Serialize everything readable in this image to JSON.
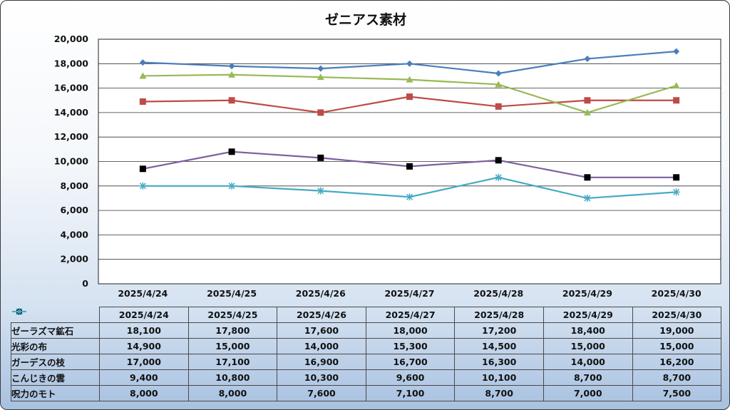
{
  "chart_data": {
    "type": "line",
    "title": "ゼニアス素材",
    "categories": [
      "2025/4/24",
      "2025/4/25",
      "2025/4/26",
      "2025/4/27",
      "2025/4/28",
      "2025/4/29",
      "2025/4/30"
    ],
    "ylim": [
      0,
      20000
    ],
    "yticks": [
      "0",
      "2,000",
      "4,000",
      "6,000",
      "8,000",
      "10,000",
      "12,000",
      "14,000",
      "16,000",
      "18,000",
      "20,000"
    ],
    "grid": true,
    "legend": "data-table",
    "series": [
      {
        "name": "ゼーラズマ鉱石",
        "color": "#4a7ebb",
        "marker": "diamond",
        "values": [
          18100,
          17800,
          17600,
          18000,
          17200,
          18400,
          19000
        ],
        "labels": [
          "18,100",
          "17,800",
          "17,600",
          "18,000",
          "17,200",
          "18,400",
          "19,000"
        ]
      },
      {
        "name": "光彩の布",
        "color": "#be4b48",
        "marker": "square",
        "values": [
          14900,
          15000,
          14000,
          15300,
          14500,
          15000,
          15000
        ],
        "labels": [
          "14,900",
          "15,000",
          "14,000",
          "15,300",
          "14,500",
          "15,000",
          "15,000"
        ]
      },
      {
        "name": "ガーデスの枝",
        "color": "#98b954",
        "marker": "triangle",
        "values": [
          17000,
          17100,
          16900,
          16700,
          16300,
          14000,
          16200
        ],
        "labels": [
          "17,000",
          "17,100",
          "16,900",
          "16,700",
          "16,300",
          "14,000",
          "16,200"
        ]
      },
      {
        "name": "こんじきの雲",
        "color": "#7d60a0",
        "marker": "black-square",
        "values": [
          9400,
          10800,
          10300,
          9600,
          10100,
          8700,
          8700
        ],
        "labels": [
          "9,400",
          "10,800",
          "10,300",
          "9,600",
          "10,100",
          "8,700",
          "8,700"
        ]
      },
      {
        "name": "呪力のモト",
        "color": "#46aac5",
        "marker": "asterisk",
        "values": [
          8000,
          8000,
          7600,
          7100,
          8700,
          7000,
          7500
        ],
        "labels": [
          "8,000",
          "8,000",
          "7,600",
          "7,100",
          "8,700",
          "7,000",
          "7,500"
        ]
      }
    ]
  }
}
